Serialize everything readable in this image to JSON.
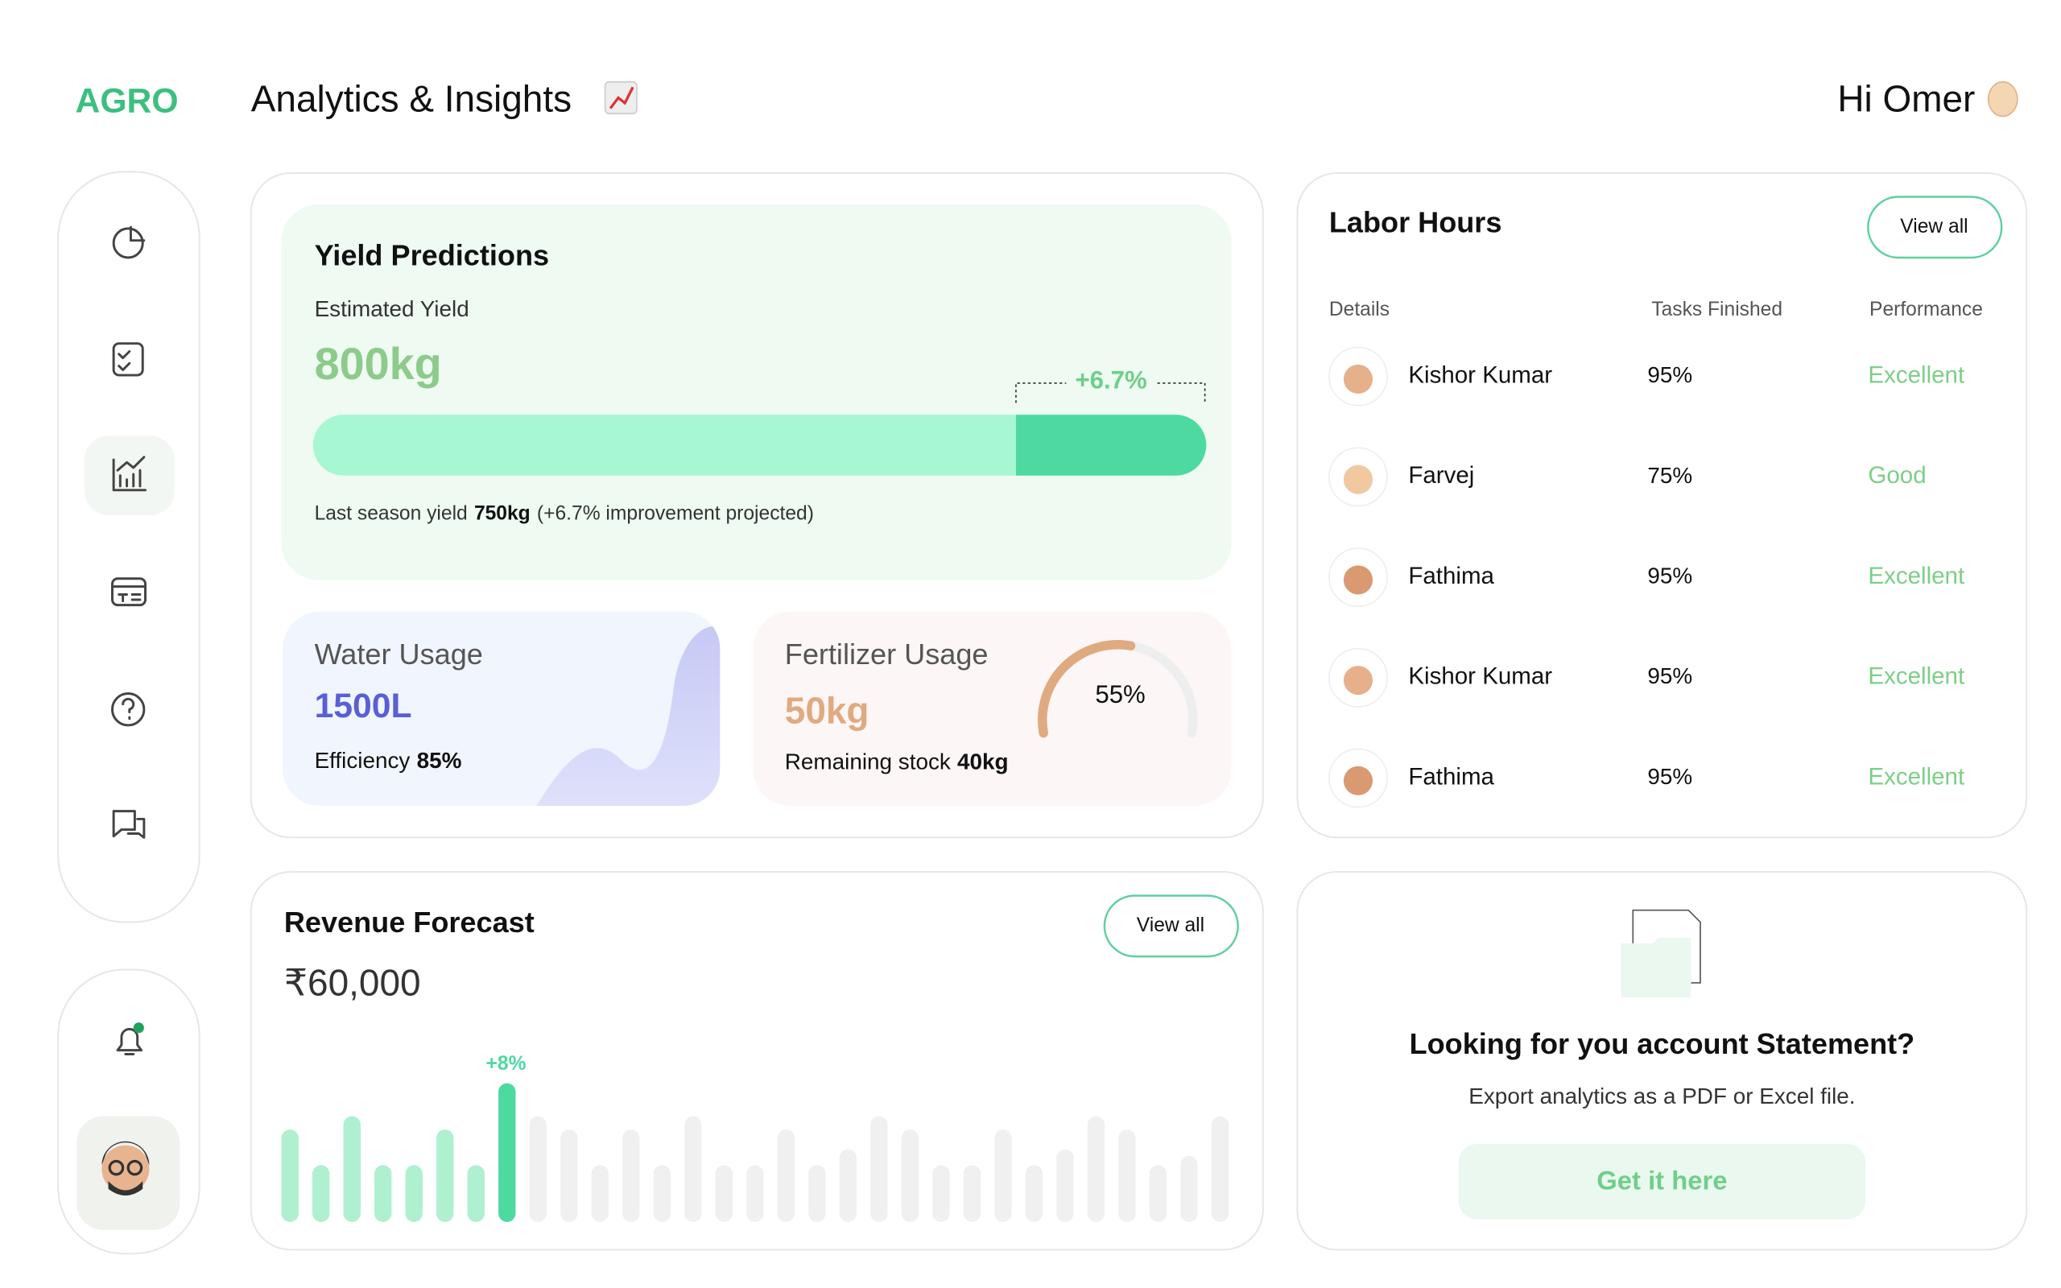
{
  "header": {
    "logo": "AGRO",
    "title": "Analytics & Insights",
    "greeting": "Hi Omer"
  },
  "yield": {
    "title": "Yield Predictions",
    "subtitle": "Estimated Yield",
    "value": "800kg",
    "change": "+6.7%",
    "caption_prefix": "Last season yield",
    "caption_bold": "750kg",
    "caption_suffix": "(+6.7% improvement projected)"
  },
  "water": {
    "title": "Water Usage",
    "value": "1500L",
    "efficiency_label": "Efficiency",
    "efficiency": "85%"
  },
  "fertilizer": {
    "title": "Fertilizer Usage",
    "value": "50kg",
    "stock_label": "Remaining stock",
    "stock": "40kg",
    "gauge": {
      "value": 55,
      "label": "55%"
    }
  },
  "labor": {
    "title": "Labor Hours",
    "button": "View all",
    "columns": [
      "Details",
      "Tasks Finished",
      "Performance"
    ],
    "rows": [
      [
        "Kishor Kumar",
        "95%",
        "Excellent"
      ],
      [
        "Farvej",
        "75%",
        "Good"
      ],
      [
        "Fathima",
        "95%",
        "Excellent"
      ],
      [
        "Kishor Kumar",
        "95%",
        "Excellent"
      ],
      [
        "Fathima",
        "95%",
        "Excellent"
      ]
    ]
  },
  "revenue": {
    "title": "Revenue Forecast",
    "button": "View all",
    "amount": "₹60,000",
    "change": "+8%",
    "bars": {
      "values": [
        70,
        43,
        80,
        43,
        43,
        70,
        43,
        105,
        80,
        70,
        43,
        70,
        43,
        80,
        43,
        43,
        70,
        43,
        55,
        80,
        70,
        43,
        43,
        70,
        43,
        55,
        80,
        70,
        43,
        50,
        80
      ],
      "colors": [
        "#aef0d0",
        "#aef0d0",
        "#aef0d0",
        "#aef0d0",
        "#aef0d0",
        "#aef0d0",
        "#aef0d0",
        "#4ed9a0",
        "#f0f0f0",
        "#f0f0f0",
        "#f0f0f0",
        "#f0f0f0",
        "#f0f0f0",
        "#f0f0f0",
        "#f0f0f0",
        "#f0f0f0",
        "#f0f0f0",
        "#f0f0f0",
        "#f0f0f0",
        "#f0f0f0",
        "#f0f0f0",
        "#f0f0f0",
        "#f0f0f0",
        "#f0f0f0",
        "#f0f0f0",
        "#f0f0f0",
        "#f0f0f0",
        "#f0f0f0",
        "#f0f0f0",
        "#f0f0f0",
        "#f0f0f0"
      ]
    }
  },
  "statement": {
    "title": "Looking for you account Statement?",
    "subtitle": "Export analytics as a PDF or Excel file.",
    "button": "Get it here"
  }
}
